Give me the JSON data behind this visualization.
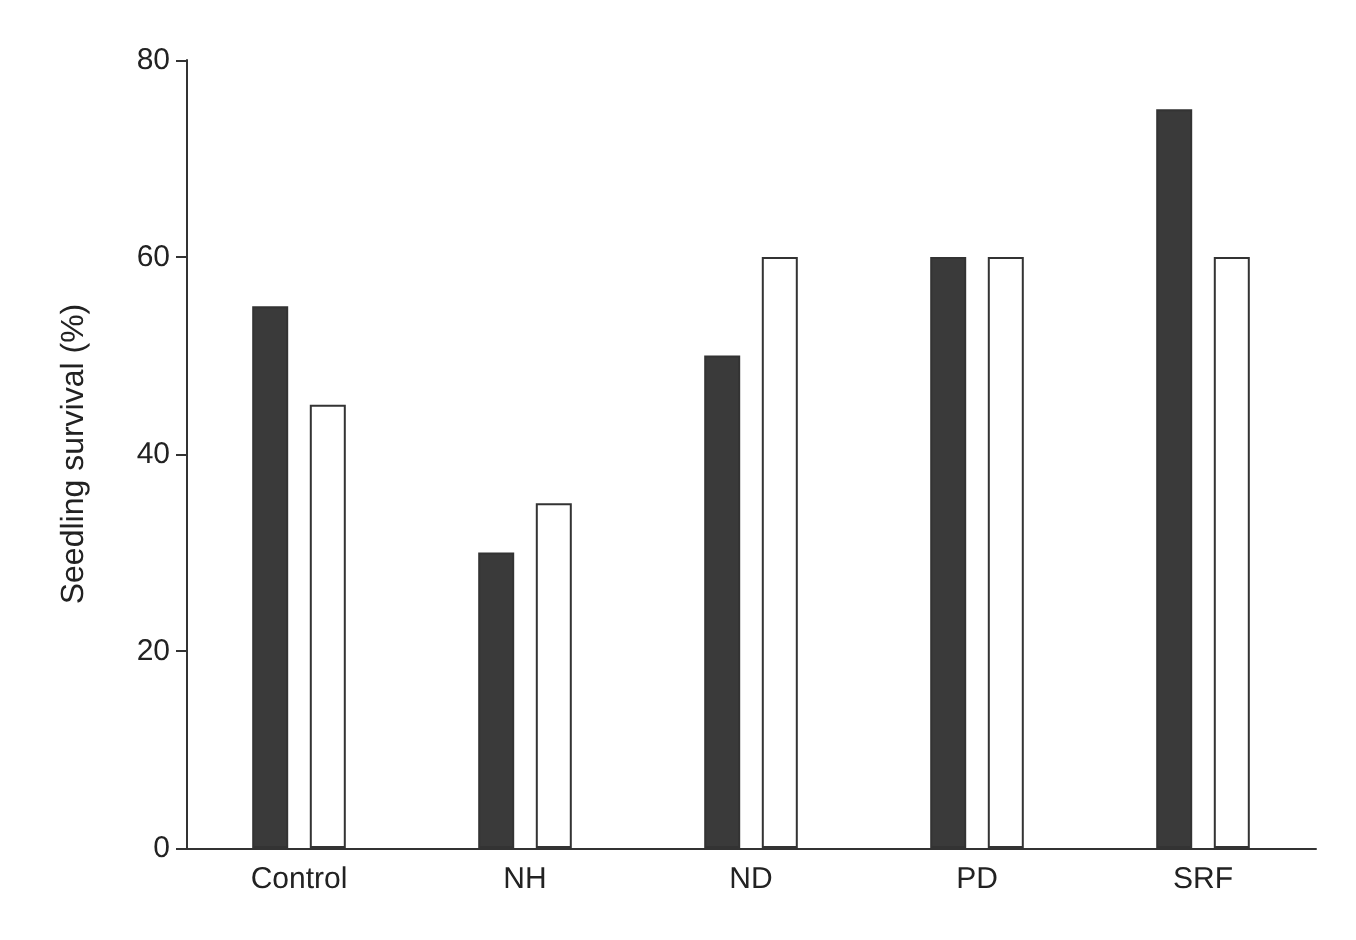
{
  "chart_data": {
    "type": "bar",
    "ylabel": "Seedling survival (%)",
    "categories": [
      "Control",
      "NH",
      "ND",
      "PD",
      "SRF"
    ],
    "series": [
      {
        "color": "#3a3a3a",
        "values": [
          55,
          30,
          50,
          60,
          75
        ]
      },
      {
        "color": "#ffffff",
        "values": [
          45,
          35,
          60,
          60,
          60
        ]
      }
    ],
    "ylim": [
      0,
      80
    ],
    "yticks": [
      0,
      20,
      40,
      60,
      80
    ]
  }
}
